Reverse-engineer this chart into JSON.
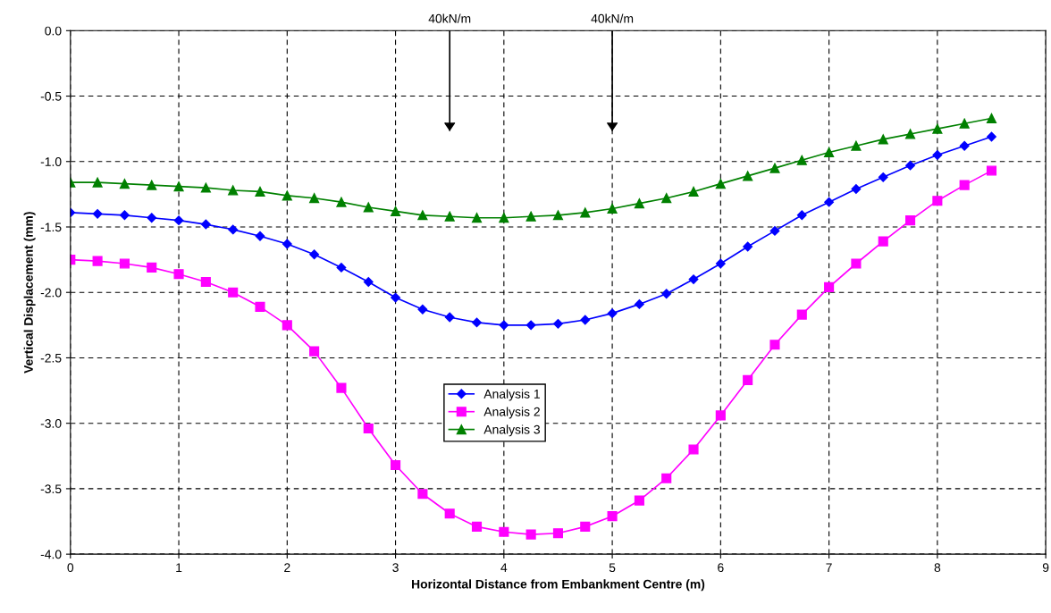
{
  "chart_data": {
    "type": "line",
    "xlabel": "Horizontal Distance from Embankment Centre (m)",
    "ylabel": "Vertical Displacement (mm)",
    "x": [
      0,
      0.25,
      0.5,
      0.75,
      1,
      1.25,
      1.5,
      1.75,
      2,
      2.25,
      2.5,
      2.75,
      3,
      3.25,
      3.5,
      3.75,
      4,
      4.25,
      4.5,
      4.75,
      5,
      5.25,
      5.5,
      5.75,
      6,
      6.25,
      6.5,
      6.75,
      7,
      7.25,
      7.5,
      7.75,
      8,
      8.25,
      8.5
    ],
    "series": [
      {
        "name": "Analysis 1",
        "color": "#0000ff",
        "marker": "diamond",
        "values": [
          -1.39,
          -1.4,
          -1.41,
          -1.43,
          -1.45,
          -1.48,
          -1.52,
          -1.57,
          -1.63,
          -1.71,
          -1.81,
          -1.92,
          -2.04,
          -2.13,
          -2.19,
          -2.23,
          -2.25,
          -2.25,
          -2.24,
          -2.21,
          -2.16,
          -2.09,
          -2.01,
          -1.9,
          -1.78,
          -1.65,
          -1.53,
          -1.41,
          -1.31,
          -1.21,
          -1.12,
          -1.03,
          -0.95,
          -0.88,
          -0.81
        ]
      },
      {
        "name": "Analysis 2",
        "color": "#ff00ff",
        "marker": "square",
        "values": [
          -1.75,
          -1.76,
          -1.78,
          -1.81,
          -1.86,
          -1.92,
          -2.0,
          -2.11,
          -2.25,
          -2.45,
          -2.73,
          -3.04,
          -3.32,
          -3.54,
          -3.69,
          -3.79,
          -3.83,
          -3.85,
          -3.84,
          -3.79,
          -3.71,
          -3.59,
          -3.42,
          -3.2,
          -2.94,
          -2.67,
          -2.4,
          -2.17,
          -1.96,
          -1.78,
          -1.61,
          -1.45,
          -1.3,
          -1.18,
          -1.07
        ]
      },
      {
        "name": "Analysis 3",
        "color": "#008000",
        "marker": "triangle",
        "values": [
          -1.16,
          -1.16,
          -1.17,
          -1.18,
          -1.19,
          -1.2,
          -1.22,
          -1.23,
          -1.26,
          -1.28,
          -1.31,
          -1.35,
          -1.38,
          -1.41,
          -1.42,
          -1.43,
          -1.43,
          -1.42,
          -1.41,
          -1.39,
          -1.36,
          -1.32,
          -1.28,
          -1.23,
          -1.17,
          -1.11,
          -1.05,
          -0.99,
          -0.93,
          -0.88,
          -0.83,
          -0.79,
          -0.75,
          -0.71,
          -0.67
        ]
      }
    ],
    "xlim": [
      0,
      9
    ],
    "xticks": [
      0,
      1,
      2,
      3,
      4,
      5,
      6,
      7,
      8,
      9
    ],
    "ylim": [
      -4,
      0
    ],
    "yticks": [
      {
        "value": -4,
        "label": "-4.0"
      },
      {
        "value": -3.5,
        "label": "-3.5"
      },
      {
        "value": -3,
        "label": "-3.0"
      },
      {
        "value": -2.5,
        "label": "-2.5"
      },
      {
        "value": -2,
        "label": "-2.0"
      },
      {
        "value": -1.5,
        "label": "-1.5"
      },
      {
        "value": -1,
        "label": "-1.0"
      },
      {
        "value": -0.5,
        "label": "-0.5"
      },
      {
        "value": 0,
        "label": "0.0"
      }
    ],
    "grid": true,
    "legend": "center",
    "line_style": "solid",
    "ref_lines": [
      {
        "axis": "x",
        "value": 3.5,
        "label": "40kN/m"
      },
      {
        "axis": "x",
        "value": 5,
        "label": "40kN/m"
      }
    ]
  }
}
